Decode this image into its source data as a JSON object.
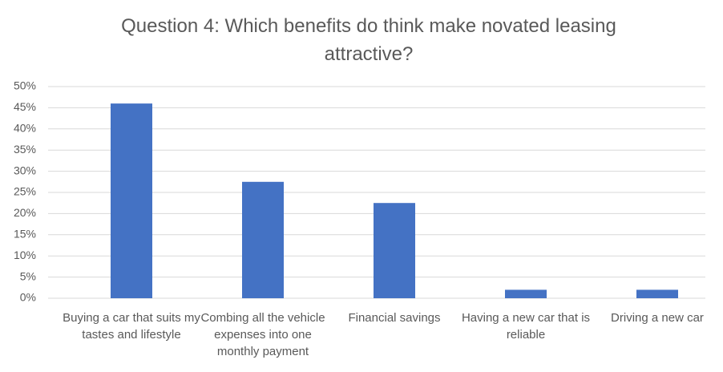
{
  "chart_data": {
    "type": "bar",
    "title": "Question 4: Which benefits do think make novated leasing attractive?",
    "categories": [
      "Buying a car that suits my tastes and lifestyle",
      "Combing all the vehicle expenses into one monthly payment",
      "Financial savings",
      "Having a new car that is reliable",
      "Driving a new car"
    ],
    "values": [
      46,
      27.5,
      22.5,
      2,
      2
    ],
    "color": "#4472c4",
    "ylim": [
      0,
      50
    ],
    "yticks": [
      {
        "value": 0,
        "label": "0%"
      },
      {
        "value": 5,
        "label": "5%"
      },
      {
        "value": 10,
        "label": "10%"
      },
      {
        "value": 15,
        "label": "15%"
      },
      {
        "value": 20,
        "label": "20%"
      },
      {
        "value": 25,
        "label": "25%"
      },
      {
        "value": 30,
        "label": "30%"
      },
      {
        "value": 35,
        "label": "35%"
      },
      {
        "value": 40,
        "label": "40%"
      },
      {
        "value": 45,
        "label": "45%"
      },
      {
        "value": 50,
        "label": "50%"
      }
    ],
    "grid": true
  }
}
